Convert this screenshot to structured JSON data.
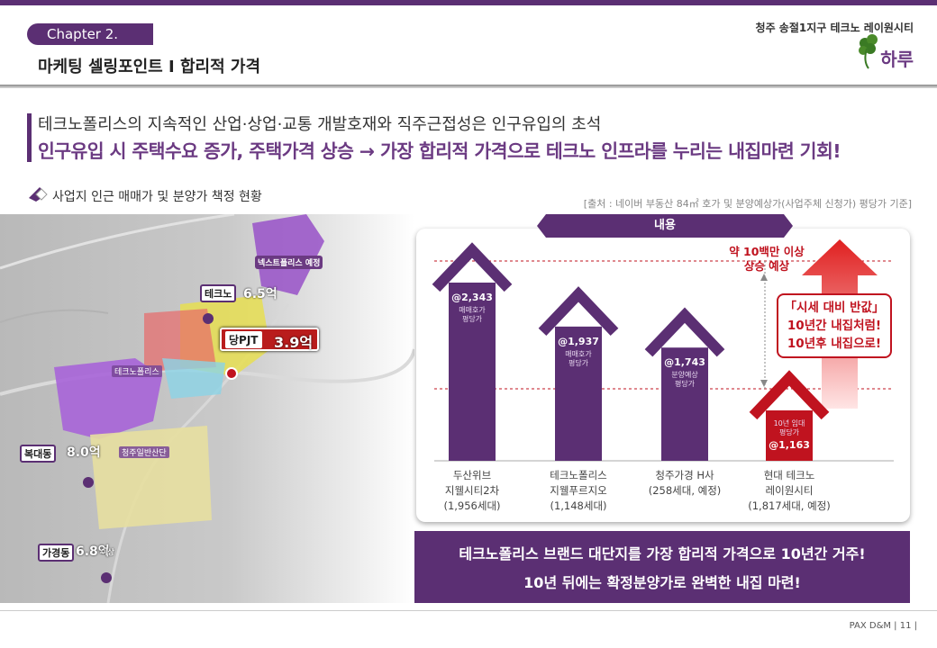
{
  "header": {
    "chapter": "Chapter 2.",
    "section_title": "마케팅 셀링포인트 I 합리적 가격",
    "brand_line": "청주 송절1지구 테크노 레이원시티",
    "brand_logo_text": "하루"
  },
  "headline": {
    "line1": "테크노폴리스의 지속적인 산업·상업·교통 개발호재와 직주근접성은 인구유입의 초석",
    "line2": "인구유입 시 주택수요 증가, 주택가격 상승 → 가장 합리적 가격으로 테크노 인프라를 누리는 내집마련 기회!"
  },
  "subtitle": "사업지 인근 매매가 및 분양가 책정 현황",
  "source": "[출처 : 네이버 부동산 84㎡ 호가 및 분양예상가(사업주체 신청가) 평당가 기준]",
  "map": {
    "labels": {
      "next_polis": "넥스트폴리스 예정",
      "techno_polis": "테크노폴리스",
      "jugsan": "청주일반산단"
    },
    "markers": [
      {
        "name": "테크노",
        "price": "6.5억"
      },
      {
        "name": "복대동",
        "price": "8.0억"
      },
      {
        "name": "가경동",
        "price": "6.8억",
        "suffix": "이상"
      }
    ],
    "project": {
      "name": "당PJT",
      "price": "3.9억"
    }
  },
  "panel_tab": "내용",
  "chart_data": {
    "type": "bar",
    "categories": [
      [
        "두산위브",
        "지웰시티2차",
        "(1,956세대)"
      ],
      [
        "테크노폴리스",
        "지웰푸르지오",
        "(1,148세대)"
      ],
      [
        "청주가경 H사",
        "(258세대, 예정)"
      ],
      [
        "현대 테크노",
        "레이원시티",
        "(1,817세대, 예정)"
      ]
    ],
    "values": [
      2343,
      1937,
      1743,
      1163
    ],
    "value_labels": [
      "@2,343",
      "@1,937",
      "@1,743",
      "@1,163"
    ],
    "captions": [
      [
        "매매호가",
        "평당가"
      ],
      [
        "매매호가",
        "평당가"
      ],
      [
        "분양예상",
        "평당가"
      ],
      [
        "10년 임대",
        "평당가"
      ]
    ],
    "colors": {
      "market": "#5b2f73",
      "highlight": "#c0131f"
    }
  },
  "annotations": {
    "rise_line1": "약 10백만 이상",
    "rise_line2": "상승 예상",
    "box_line1": "「시세 대비 반값」",
    "box_line2": "10년간 내집처럼!",
    "box_line3": "10년후 내집으로!"
  },
  "bottom": {
    "line1": "테크노폴리스 브랜드 대단지를 가장 합리적 가격으로 10년간 거주!",
    "line2": "10년 뒤에는 확정분양가로 완벽한 내집 마련!"
  },
  "footer": "PAX D&M | 11 |"
}
